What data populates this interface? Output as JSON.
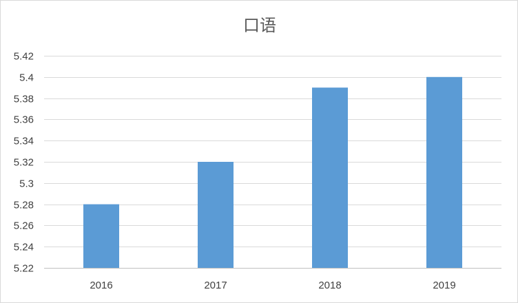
{
  "chart_data": {
    "type": "bar",
    "title": "口语",
    "xlabel": "",
    "ylabel": "",
    "categories": [
      "2016",
      "2017",
      "2018",
      "2019"
    ],
    "values": [
      5.28,
      5.32,
      5.39,
      5.4
    ],
    "ylim": [
      5.22,
      5.42
    ],
    "yticks": [
      "5.22",
      "5.24",
      "5.26",
      "5.28",
      "5.3",
      "5.32",
      "5.34",
      "5.36",
      "5.38",
      "5.4",
      "5.42"
    ],
    "grid": true,
    "legend": "none",
    "bar_color": "#5b9bd5"
  }
}
